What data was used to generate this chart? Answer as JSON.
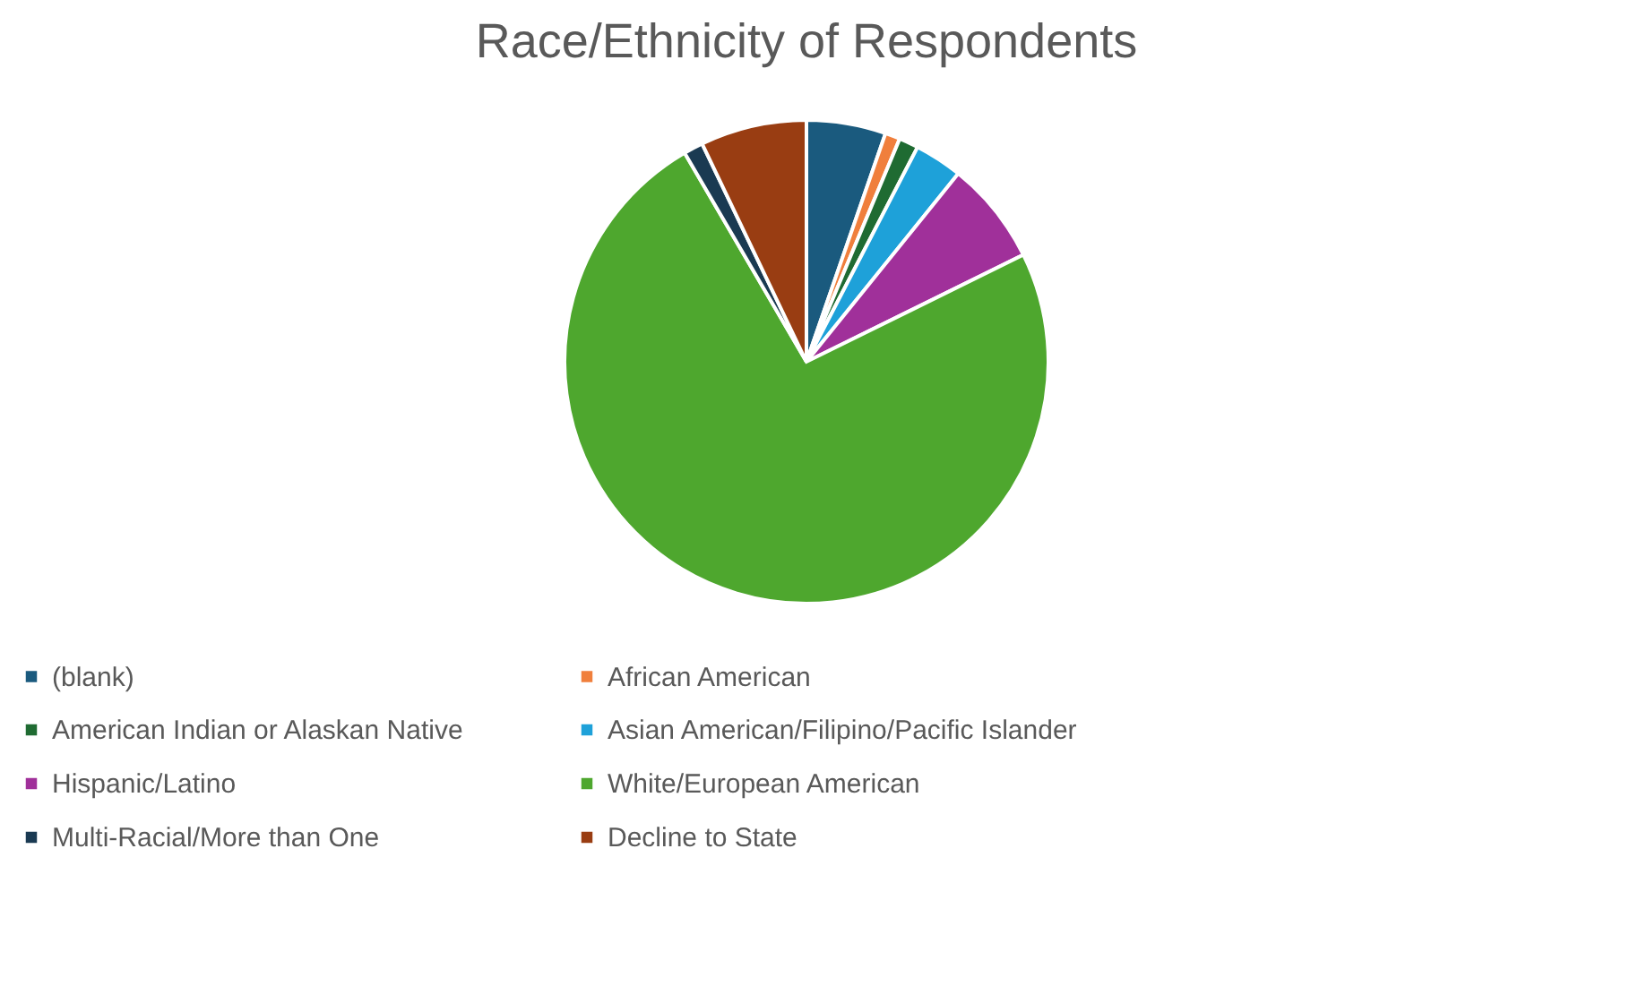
{
  "chart_data": {
    "type": "pie",
    "title": "Race/Ethnicity of Respondents",
    "categories": [
      "(blank)",
      "African American",
      "American Indian or Alaskan Native",
      "Asian American/Filipino/Pacific Islander",
      "Hispanic/Latino",
      "White/European American",
      "Multi-Racial/More than One",
      "Decline to State"
    ],
    "values": [
      5.3,
      1,
      1.3,
      3.2,
      6.9,
      73.9,
      1.3,
      7.1
    ],
    "colors": [
      "#1a5a7e",
      "#f07f3c",
      "#1f6b32",
      "#1ea1d9",
      "#a0309a",
      "#4ea72e",
      "#1a3a52",
      "#993d12"
    ],
    "legend": "bottom"
  }
}
